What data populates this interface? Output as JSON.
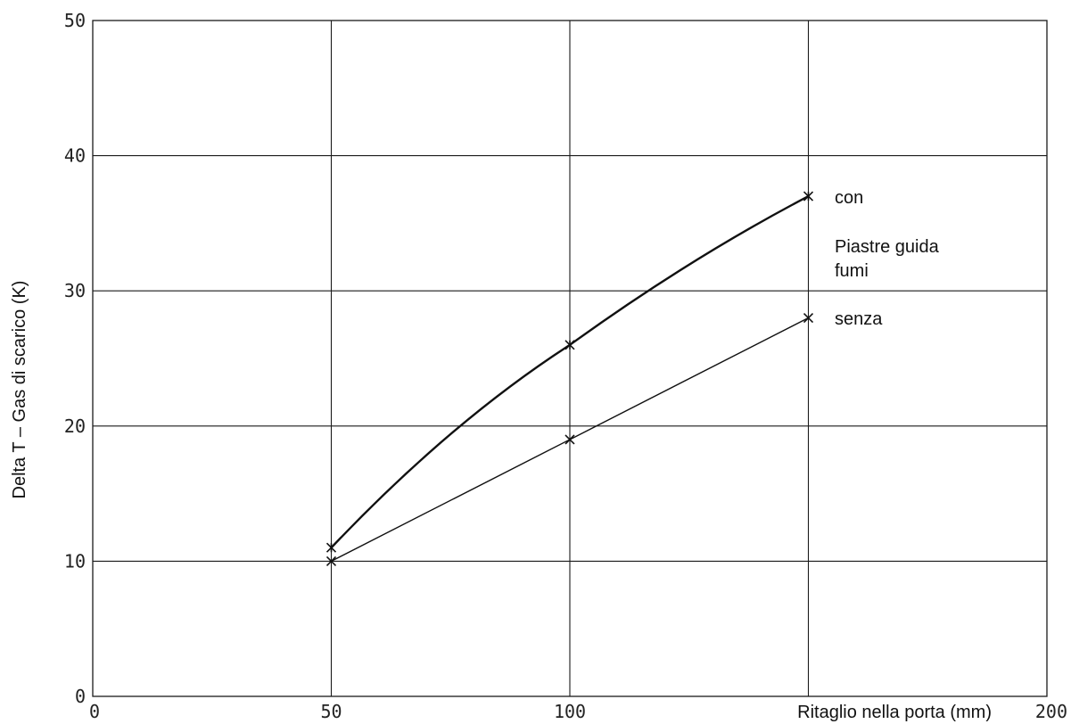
{
  "chart_data": {
    "type": "line",
    "xlabel": "Ritaglio nella porta (mm)",
    "ylabel": "Delta T  –  Gas di scarico (K)",
    "xlim": [
      0,
      200
    ],
    "ylim": [
      0,
      50
    ],
    "x_ticks": [
      "0",
      "50",
      "100",
      "200"
    ],
    "y_ticks": [
      "0",
      "10",
      "20",
      "30",
      "40",
      "50"
    ],
    "grid": true,
    "series": [
      {
        "name": "con",
        "x": [
          50,
          100,
          150
        ],
        "y": [
          11,
          26,
          37
        ]
      },
      {
        "name": "senza",
        "x": [
          50,
          100,
          150
        ],
        "y": [
          10,
          19,
          28
        ]
      }
    ],
    "legend_caption": [
      "Piastre guida",
      "fumi"
    ],
    "colors": {
      "line": "#111111",
      "grid": "#1a1a1a",
      "background": "#ffffff"
    }
  }
}
